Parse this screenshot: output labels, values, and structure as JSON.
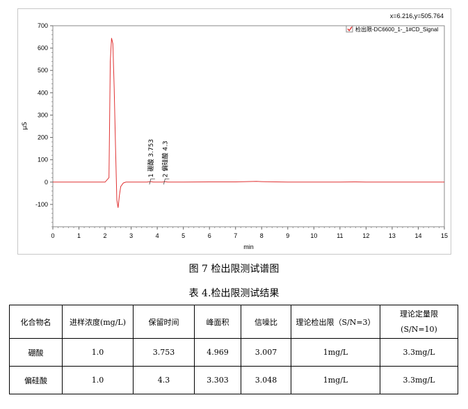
{
  "figure_caption": "图 7  检出限测试谱图",
  "table_caption": "表 4.检出限测试结果",
  "chart_data": {
    "type": "line",
    "coord_readout": "x=6.216,y=505.764",
    "legend": {
      "label": "检出限-DC6600_1-_1#CD_Signal",
      "checked": true,
      "color": "#e03232",
      "placement": "top-right"
    },
    "xlabel": "min",
    "ylabel": "μS",
    "xlim": [
      0,
      15
    ],
    "ylim": [
      -200,
      700
    ],
    "x_ticks": [
      0,
      1,
      2,
      3,
      4,
      5,
      6,
      7,
      8,
      9,
      10,
      11,
      12,
      13,
      14,
      15
    ],
    "y_ticks": [
      -100,
      0,
      100,
      200,
      300,
      400,
      500,
      600,
      700
    ],
    "series": [
      {
        "color": "#e03232",
        "x": [
          0,
          1.0,
          1.5,
          2.0,
          2.15,
          2.2,
          2.25,
          2.3,
          2.35,
          2.4,
          2.45,
          2.5,
          2.55,
          2.6,
          2.7,
          2.8,
          3.0,
          3.6,
          3.75,
          3.85,
          4.2,
          4.3,
          4.4,
          5.0,
          6.0,
          7.0,
          7.8,
          8.0,
          9.0,
          10.0,
          11.0,
          11.6,
          12.0,
          13.0,
          14.0,
          15.0
        ],
        "y": [
          0,
          0,
          0,
          0,
          20,
          540,
          645,
          620,
          420,
          160,
          -80,
          -115,
          -60,
          -20,
          -4,
          0,
          0,
          0,
          2,
          0,
          0,
          2,
          0,
          0,
          1,
          1,
          3,
          2,
          0,
          0,
          0,
          1,
          0,
          0,
          0,
          0
        ]
      }
    ],
    "peak_labels": [
      {
        "text": "1 硼酸 3.753",
        "x": 3.753,
        "y": 2
      },
      {
        "text": "2 偏硅酸 4.3",
        "x": 4.3,
        "y": 2
      }
    ]
  },
  "table": {
    "headers": [
      "化合物名",
      "进样浓度(mg/L)",
      "保留时间",
      "峰面积",
      "信噪比",
      "理论检出限（S/N=3）",
      "理论定量限\n(S/N=10)"
    ],
    "rows": [
      [
        "硼酸",
        "1.0",
        "3.753",
        "4.969",
        "3.007",
        "1mg/L",
        "3.3mg/L"
      ],
      [
        "偏硅酸",
        "1.0",
        "4.3",
        "3.303",
        "3.048",
        "1mg/L",
        "3.3mg/L"
      ]
    ]
  }
}
